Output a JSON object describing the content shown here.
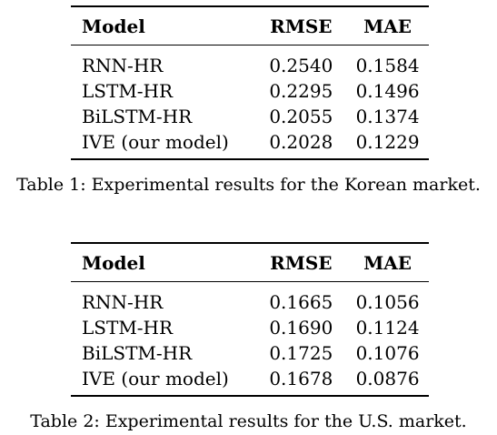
{
  "tables": [
    {
      "columns": [
        "Model",
        "RMSE",
        "MAE"
      ],
      "rows": [
        {
          "model": "RNN-HR",
          "rmse": "0.2540",
          "mae": "0.1584"
        },
        {
          "model": "LSTM-HR",
          "rmse": "0.2295",
          "mae": "0.1496"
        },
        {
          "model": "BiLSTM-HR",
          "rmse": "0.2055",
          "mae": "0.1374"
        },
        {
          "model": "IVE (our model)",
          "rmse": "0.2028",
          "mae": "0.1229"
        }
      ],
      "caption": "Table 1: Experimental results for the Korean market."
    },
    {
      "columns": [
        "Model",
        "RMSE",
        "MAE"
      ],
      "rows": [
        {
          "model": "RNN-HR",
          "rmse": "0.1665",
          "mae": "0.1056"
        },
        {
          "model": "LSTM-HR",
          "rmse": "0.1690",
          "mae": "0.1124"
        },
        {
          "model": "BiLSTM-HR",
          "rmse": "0.1725",
          "mae": "0.1076"
        },
        {
          "model": "IVE (our model)",
          "rmse": "0.1678",
          "mae": "0.0876"
        }
      ],
      "caption": "Table 2: Experimental results for the U.S. market."
    }
  ]
}
